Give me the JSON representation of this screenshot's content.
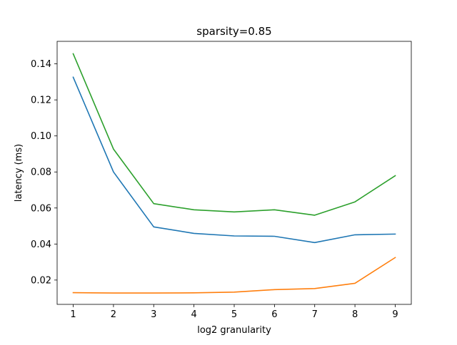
{
  "chart_data": {
    "type": "line",
    "title": "sparsity=0.85",
    "xlabel": "log2 granularity",
    "ylabel": "latency (ms)",
    "x": [
      1,
      2,
      3,
      4,
      5,
      6,
      7,
      8,
      9
    ],
    "xlim": [
      0.6,
      9.4
    ],
    "ylim": [
      0.0065,
      0.1525
    ],
    "x_ticks": [
      "1",
      "2",
      "3",
      "4",
      "5",
      "6",
      "7",
      "8",
      "9"
    ],
    "y_ticks": [
      "0.02",
      "0.04",
      "0.06",
      "0.08",
      "0.10",
      "0.12",
      "0.14"
    ],
    "y_tick_values": [
      0.02,
      0.04,
      0.06,
      0.08,
      0.1,
      0.12,
      0.14
    ],
    "grid": false,
    "series": [
      {
        "color": "#1f77b4",
        "values": [
          0.1326,
          0.08,
          0.0495,
          0.0459,
          0.0445,
          0.0443,
          0.0408,
          0.0451,
          0.0455
        ]
      },
      {
        "color": "#ff7f0e",
        "values": [
          0.013,
          0.0128,
          0.0128,
          0.0129,
          0.0133,
          0.0147,
          0.0153,
          0.0182,
          0.0325
        ]
      },
      {
        "color": "#2ca02c",
        "values": [
          0.1456,
          0.0927,
          0.0624,
          0.059,
          0.0578,
          0.059,
          0.056,
          0.0634,
          0.0779
        ]
      }
    ]
  }
}
